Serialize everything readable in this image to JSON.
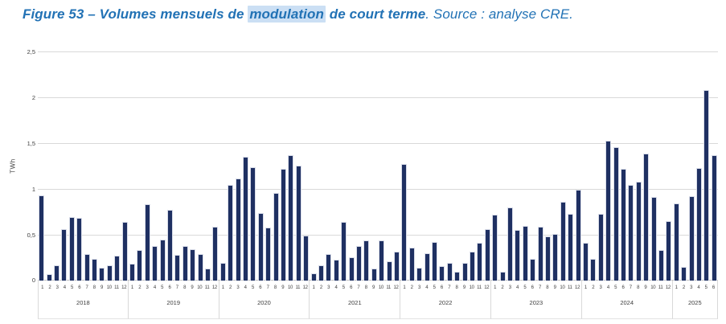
{
  "figure": {
    "title_part1": "Figure 53 – Volumes mensuels de ",
    "title_highlight": "modulation",
    "title_part2": " de court terme",
    "title_separator": ". ",
    "title_source": "Source : analyse CRE.",
    "title_color": "#2272B5",
    "highlight_bg": "#CBDFF4"
  },
  "chart_data": {
    "type": "bar",
    "title": "Figure 53 – Volumes mensuels de modulation de court terme",
    "source": "Source : analyse CRE.",
    "xlabel": "",
    "ylabel": "TWh",
    "ylim": [
      0,
      2.5
    ],
    "grid": true,
    "legend": "none",
    "bar_color": "#1F3062",
    "bar_border_color": "#D9DDE9",
    "gridline_color": "#D9D9D9",
    "axis_text_color": "#404040",
    "yticks": [
      {
        "value": 0,
        "label": "0"
      },
      {
        "value": 0.5,
        "label": "0,5"
      },
      {
        "value": 1,
        "label": "1"
      },
      {
        "value": 1.5,
        "label": "1,5"
      },
      {
        "value": 2,
        "label": "2"
      },
      {
        "value": 2.5,
        "label": "2,5"
      }
    ],
    "groups": [
      {
        "year": "2018",
        "months": [
          "1",
          "2",
          "3",
          "4",
          "5",
          "6",
          "7",
          "8",
          "9",
          "10",
          "11",
          "12"
        ],
        "values": [
          0.93,
          0.07,
          0.17,
          0.56,
          0.69,
          0.68,
          0.29,
          0.24,
          0.14,
          0.17,
          0.27,
          0.64
        ]
      },
      {
        "year": "2019",
        "months": [
          "1",
          "2",
          "3",
          "4",
          "5",
          "6",
          "7",
          "8",
          "9",
          "10",
          "11",
          "12"
        ],
        "values": [
          0.18,
          0.33,
          0.83,
          0.38,
          0.45,
          0.77,
          0.28,
          0.38,
          0.34,
          0.29,
          0.13,
          0.59
        ]
      },
      {
        "year": "2020",
        "months": [
          "1",
          "2",
          "3",
          "4",
          "5",
          "6",
          "7",
          "8",
          "9",
          "10",
          "11",
          "12"
        ],
        "values": [
          0.19,
          1.04,
          1.11,
          1.35,
          1.24,
          0.74,
          0.58,
          0.96,
          1.22,
          1.37,
          1.25,
          0.49
        ]
      },
      {
        "year": "2021",
        "months": [
          "1",
          "2",
          "3",
          "4",
          "5",
          "6",
          "7",
          "8",
          "9",
          "10",
          "11",
          "12"
        ],
        "values": [
          0.08,
          0.17,
          0.29,
          0.23,
          0.64,
          0.25,
          0.38,
          0.44,
          0.13,
          0.44,
          0.21,
          0.32
        ]
      },
      {
        "year": "2022",
        "months": [
          "1",
          "2",
          "3",
          "4",
          "5",
          "6",
          "7",
          "8",
          "9",
          "10",
          "11",
          "12"
        ],
        "values": [
          1.27,
          0.36,
          0.14,
          0.3,
          0.42,
          0.16,
          0.19,
          0.1,
          0.19,
          0.32,
          0.41,
          0.56
        ]
      },
      {
        "year": "2023",
        "months": [
          "1",
          "2",
          "3",
          "4",
          "5",
          "6",
          "7",
          "8",
          "9",
          "10",
          "11",
          "12"
        ],
        "values": [
          0.72,
          0.1,
          0.8,
          0.55,
          0.6,
          0.24,
          0.59,
          0.48,
          0.51,
          0.86,
          0.73,
          0.99
        ]
      },
      {
        "year": "2024",
        "months": [
          "1",
          "2",
          "3",
          "4",
          "5",
          "6",
          "7",
          "8",
          "9",
          "10",
          "11",
          "12"
        ],
        "values": [
          0.41,
          0.24,
          0.73,
          1.53,
          1.46,
          1.22,
          1.04,
          1.08,
          1.39,
          0.91,
          0.33,
          0.65
        ]
      },
      {
        "year": "2025",
        "months": [
          "1",
          "2",
          "3",
          "4",
          "5",
          "6"
        ],
        "values": [
          0.84,
          0.15,
          0.92,
          1.23,
          2.08,
          1.37
        ]
      }
    ]
  }
}
